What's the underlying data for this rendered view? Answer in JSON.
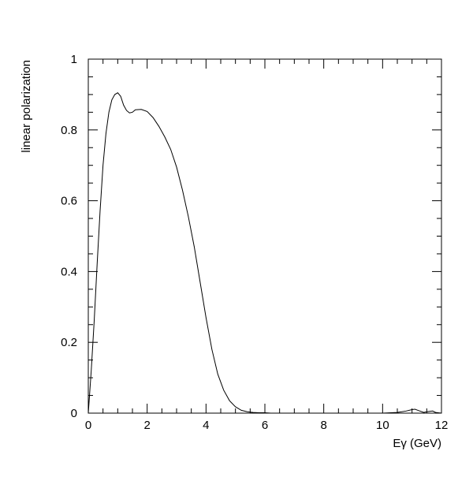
{
  "chart_data": {
    "type": "line",
    "title": "",
    "xlabel": "Eγ (GeV)",
    "ylabel": "linear polarization",
    "xlim": [
      0,
      12
    ],
    "ylim": [
      0,
      1
    ],
    "grid": false,
    "legend": "none",
    "line_color": "#000000",
    "x_major_ticks": [
      0,
      2,
      4,
      6,
      8,
      10,
      12
    ],
    "x_tick_labels": [
      "0",
      "2",
      "4",
      "6",
      "8",
      "10",
      "12"
    ],
    "y_major_ticks": [
      0,
      0.2,
      0.4,
      0.6,
      0.8,
      1
    ],
    "y_tick_labels": [
      "0",
      "0.2",
      "0.4",
      "0.6",
      "0.8",
      "1"
    ],
    "series": [
      {
        "x": [
          0,
          0.05,
          0.1,
          0.15,
          0.2,
          0.3,
          0.4,
          0.5,
          0.6,
          0.7,
          0.8,
          0.9,
          1.0,
          1.1,
          1.2,
          1.3,
          1.4,
          1.5,
          1.6,
          1.8,
          2.0,
          2.2,
          2.4,
          2.6,
          2.8,
          3.0,
          3.2,
          3.4,
          3.6,
          3.8,
          4.0,
          4.2,
          4.4,
          4.6,
          4.8,
          5.0,
          5.2,
          5.4,
          5.6,
          5.8,
          6.0,
          6.2,
          6.5,
          7.0,
          8.0,
          9.0,
          10.0,
          10.5,
          10.8,
          11.0,
          11.1,
          11.2,
          11.4,
          11.5,
          11.7,
          11.8,
          12.0
        ],
        "y": [
          0.0,
          0.06,
          0.12,
          0.19,
          0.26,
          0.42,
          0.57,
          0.7,
          0.79,
          0.85,
          0.885,
          0.9,
          0.905,
          0.895,
          0.87,
          0.855,
          0.848,
          0.85,
          0.857,
          0.858,
          0.852,
          0.835,
          0.81,
          0.78,
          0.745,
          0.695,
          0.63,
          0.555,
          0.47,
          0.37,
          0.27,
          0.18,
          0.11,
          0.065,
          0.035,
          0.018,
          0.008,
          0.004,
          0.002,
          0.001,
          0.001,
          0.0,
          0.0,
          0.0,
          0.0,
          0.0,
          0.0,
          0.002,
          0.006,
          0.01,
          0.011,
          0.008,
          0.002,
          0.004,
          0.006,
          0.002,
          0.0
        ]
      }
    ]
  }
}
